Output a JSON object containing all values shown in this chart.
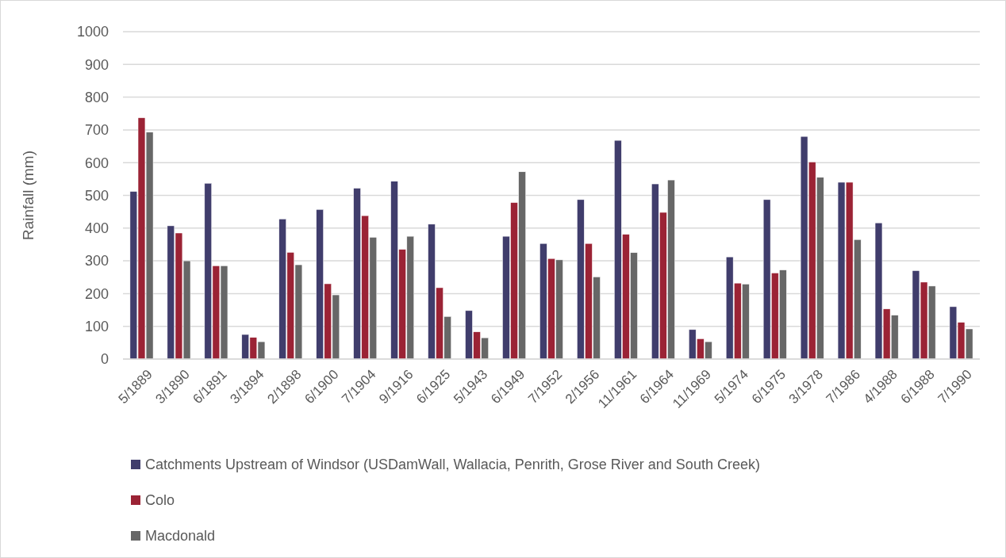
{
  "chart_data": {
    "type": "bar",
    "ylabel": "Rainfall (mm)",
    "categories": [
      "5/1889",
      "3/1890",
      "6/1891",
      "3/1894",
      "2/1898",
      "6/1900",
      "7/1904",
      "9/1916",
      "6/1925",
      "5/1943",
      "6/1949",
      "7/1952",
      "2/1956",
      "11/1961",
      "6/1964",
      "11/1969",
      "5/1974",
      "6/1975",
      "3/1978",
      "7/1986",
      "4/1988",
      "6/1988",
      "7/1990"
    ],
    "series": [
      {
        "name": "Catchments Upstream of Windsor (USDamWall, Wallacia, Penrith, Grose River and South Creek)",
        "color": "#403d6c",
        "values": [
          512,
          407,
          537,
          75,
          428,
          457,
          522,
          543,
          412,
          148,
          375,
          353,
          487,
          668,
          535,
          90,
          312,
          487,
          680,
          540,
          416,
          270,
          160
        ]
      },
      {
        "name": "Colo",
        "color": "#9b2335",
        "values": [
          737,
          385,
          285,
          66,
          326,
          230,
          438,
          335,
          218,
          83,
          478,
          307,
          353,
          381,
          448,
          62,
          232,
          263,
          602,
          540,
          153,
          235,
          112
        ]
      },
      {
        "name": "Macdonald",
        "color": "#676767",
        "values": [
          693,
          300,
          285,
          53,
          288,
          196,
          372,
          375,
          130,
          65,
          572,
          303,
          251,
          325,
          547,
          53,
          229,
          272,
          555,
          365,
          134,
          223,
          92
        ]
      }
    ],
    "ylim": [
      0,
      1000
    ],
    "yticks": [
      0,
      100,
      200,
      300,
      400,
      500,
      600,
      700,
      800,
      900,
      1000
    ],
    "grid": "y",
    "legend": "bottom"
  }
}
